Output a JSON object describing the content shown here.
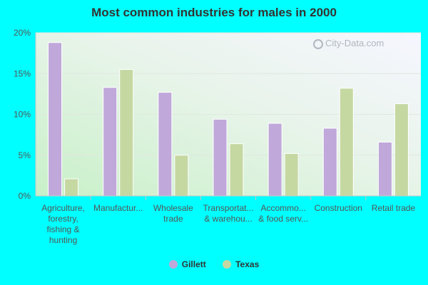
{
  "chart_data": {
    "type": "bar",
    "title": "Most common industries for males in 2000",
    "categories": [
      "Agriculture, forestry, fishing & hunting",
      "Manufactur...",
      "Wholesale trade",
      "Transportat... & warehou...",
      "Accommo... & food serv...",
      "Construction",
      "Retail trade"
    ],
    "category_label_lines": [
      [
        "Agriculture,",
        "forestry,",
        "fishing &",
        "hunting"
      ],
      [
        "Manufactur..."
      ],
      [
        "Wholesale",
        "trade"
      ],
      [
        "Transportat...",
        "& warehou..."
      ],
      [
        "Accommo...",
        "& food serv..."
      ],
      [
        "Construction"
      ],
      [
        "Retail trade"
      ]
    ],
    "series": [
      {
        "name": "Gillett",
        "color": "#c0a8da",
        "values": [
          18.8,
          13.3,
          12.7,
          9.4,
          8.9,
          8.3,
          6.6
        ]
      },
      {
        "name": "Texas",
        "color": "#c5d8a2",
        "values": [
          2.1,
          15.5,
          5.0,
          6.4,
          5.2,
          13.2,
          11.3
        ]
      }
    ],
    "yticks": [
      "0%",
      "5%",
      "10%",
      "15%",
      "20%"
    ],
    "ylim": [
      0,
      20
    ],
    "grid": true,
    "legend": "bottom"
  },
  "watermark": "City-Data.com"
}
